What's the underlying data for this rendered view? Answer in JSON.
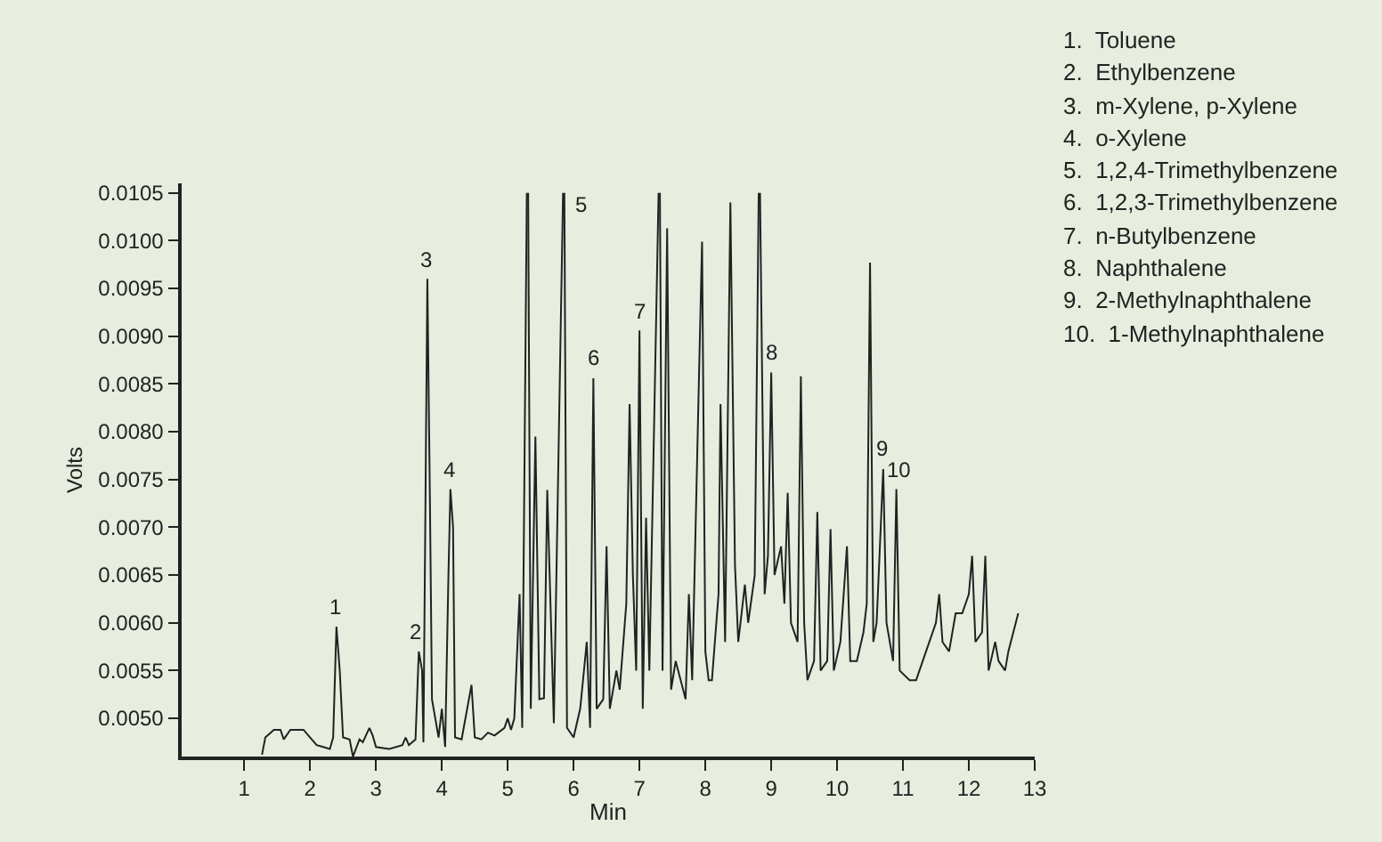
{
  "chart_data": {
    "type": "line",
    "xlabel": "Min",
    "ylabel": "Volts",
    "color": "#222222",
    "x": [
      1.27,
      1.32,
      1.45,
      1.55,
      1.6,
      1.7,
      1.9,
      2.0,
      2.1,
      2.2,
      2.3,
      2.35,
      2.4,
      2.45,
      2.5,
      2.6,
      2.65,
      2.75,
      2.8,
      2.9,
      2.95,
      3.0,
      3.2,
      3.4,
      3.45,
      3.5,
      3.6,
      3.65,
      3.7,
      3.72,
      3.78,
      3.82,
      3.85,
      3.9,
      3.95,
      4.0,
      4.05,
      4.1,
      4.13,
      4.17,
      4.2,
      4.3,
      4.45,
      4.5,
      4.6,
      4.7,
      4.8,
      4.95,
      5.0,
      5.05,
      5.1,
      5.18,
      5.22,
      5.29,
      5.3,
      5.31,
      5.35,
      5.42,
      5.48,
      5.55,
      5.6,
      5.7,
      5.84,
      5.85,
      5.86,
      5.9,
      6.0,
      6.1,
      6.2,
      6.25,
      6.3,
      6.35,
      6.45,
      6.5,
      6.55,
      6.65,
      6.7,
      6.8,
      6.85,
      6.9,
      6.95,
      7.0,
      7.05,
      7.1,
      7.15,
      7.29,
      7.3,
      7.31,
      7.35,
      7.42,
      7.48,
      7.55,
      7.7,
      7.75,
      7.8,
      7.9,
      7.95,
      8.0,
      8.05,
      8.1,
      8.2,
      8.23,
      8.3,
      8.38,
      8.45,
      8.5,
      8.6,
      8.65,
      8.75,
      8.81,
      8.82,
      8.83,
      8.9,
      8.95,
      9.0,
      9.05,
      9.15,
      9.2,
      9.25,
      9.3,
      9.4,
      9.45,
      9.5,
      9.55,
      9.65,
      9.7,
      9.75,
      9.85,
      9.9,
      9.95,
      10.05,
      10.15,
      10.2,
      10.3,
      10.4,
      10.45,
      10.5,
      10.55,
      10.6,
      10.7,
      10.75,
      10.85,
      10.9,
      10.95,
      11.1,
      11.2,
      11.3,
      11.5,
      11.55,
      11.6,
      11.7,
      11.8,
      11.9,
      12.0,
      12.05,
      12.1,
      12.2,
      12.25,
      12.3,
      12.4,
      12.45,
      12.55,
      12.6,
      12.75
    ],
    "values": [
      0.00462,
      0.0048,
      0.00488,
      0.00488,
      0.00478,
      0.00488,
      0.00488,
      0.0048,
      0.00472,
      0.0047,
      0.00468,
      0.0048,
      0.00596,
      0.0055,
      0.0048,
      0.00478,
      0.0046,
      0.00478,
      0.00475,
      0.0049,
      0.00482,
      0.0047,
      0.00468,
      0.00472,
      0.0048,
      0.00472,
      0.00478,
      0.0057,
      0.0055,
      0.00475,
      0.0096,
      0.0072,
      0.0052,
      0.005,
      0.0048,
      0.0051,
      0.0047,
      0.0065,
      0.0074,
      0.007,
      0.0048,
      0.00478,
      0.00535,
      0.0048,
      0.00478,
      0.00485,
      0.00482,
      0.0049,
      0.005,
      0.00488,
      0.005,
      0.0063,
      0.0049,
      0.0105,
      null,
      0.0105,
      0.0051,
      0.00795,
      0.0052,
      0.00521,
      0.00739,
      0.00495,
      0.0105,
      null,
      0.0105,
      0.0049,
      0.0048,
      0.0051,
      0.0058,
      0.0049,
      0.00856,
      0.0051,
      0.0052,
      0.0068,
      0.0051,
      0.0055,
      0.0053,
      0.0062,
      0.00829,
      0.0065,
      0.0055,
      0.00906,
      0.0051,
      0.0071,
      0.0055,
      0.0105,
      null,
      0.0105,
      0.0055,
      0.01013,
      0.0053,
      0.0056,
      0.0052,
      0.0063,
      0.0054,
      0.00847,
      0.00999,
      0.0057,
      0.0054,
      0.0054,
      0.0063,
      0.00829,
      0.0058,
      0.0104,
      0.0066,
      0.0058,
      0.0064,
      0.006,
      0.0065,
      0.0105,
      null,
      0.0105,
      0.0063,
      0.0067,
      0.00862,
      0.0065,
      0.0068,
      0.0062,
      0.00736,
      0.006,
      0.0058,
      0.00858,
      0.006,
      0.0054,
      0.0056,
      0.00716,
      0.0055,
      0.0056,
      0.00698,
      0.0055,
      0.0058,
      0.0068,
      0.0056,
      0.0056,
      0.0059,
      0.0062,
      0.00977,
      0.0058,
      0.006,
      0.00761,
      0.006,
      0.0056,
      0.0074,
      0.0055,
      0.0054,
      0.0054,
      0.0056,
      0.006,
      0.0063,
      0.0058,
      0.0057,
      0.0061,
      0.0061,
      0.0063,
      0.0067,
      0.0058,
      0.0059,
      0.0067,
      0.0055,
      0.0058,
      0.0056,
      0.0055,
      0.0057,
      0.0061
    ],
    "xlim": [
      0.05,
      13
    ],
    "xticks": [
      1,
      2,
      3,
      4,
      5,
      6,
      7,
      8,
      9,
      10,
      11,
      12,
      13
    ],
    "ylim": [
      0.0046,
      0.0106
    ],
    "yticks": [
      {
        "value": 0.005,
        "label": "0.0050"
      },
      {
        "value": 0.0055,
        "label": "0.0055"
      },
      {
        "value": 0.006,
        "label": "0.0060"
      },
      {
        "value": 0.0065,
        "label": "0.0065"
      },
      {
        "value": 0.007,
        "label": "0.0070"
      },
      {
        "value": 0.0075,
        "label": "0.0075"
      },
      {
        "value": 0.008,
        "label": "0.0080"
      },
      {
        "value": 0.0085,
        "label": "0.0085"
      },
      {
        "value": 0.009,
        "label": "0.0090"
      },
      {
        "value": 0.0095,
        "label": "0.0095"
      },
      {
        "value": 0.01,
        "label": "0.0100"
      },
      {
        "value": 0.0105,
        "label": "0.0105"
      }
    ],
    "grid": false,
    "legend": false,
    "marker": "none",
    "line_style": "solid",
    "annotations": [
      {
        "text": "1",
        "x": 2.4,
        "y": 0.00596
      },
      {
        "text": "2",
        "x": 3.6,
        "y": 0.0057
      },
      {
        "text": "3",
        "x": 3.78,
        "y": 0.0096
      },
      {
        "text": "4",
        "x": 4.13,
        "y": 0.0074
      },
      {
        "text": "5",
        "x": 5.86,
        "y": 0.0105
      },
      {
        "text": "6",
        "x": 6.3,
        "y": 0.00856
      },
      {
        "text": "7",
        "x": 7.0,
        "y": 0.00906
      },
      {
        "text": "8",
        "x": 9.0,
        "y": 0.00862
      },
      {
        "text": "9",
        "x": 10.7,
        "y": 0.00761
      },
      {
        "text": "10",
        "x": 10.95,
        "y": 0.0074
      },
      "1.  Toluene",
      "2.  Ethylbenzene",
      "3.  m-Xylene, p-Xylene",
      "4.  o-Xylene",
      "5.  1,2,4-Trimethylbenzene",
      "6.  1,2,3-Trimethylbenzene",
      "7.  n-Butylbenzene",
      "8.  Naphthalene",
      "9.  2-Methylnaphthalene",
      "10.  1-Methylnaphthalene"
    ]
  }
}
